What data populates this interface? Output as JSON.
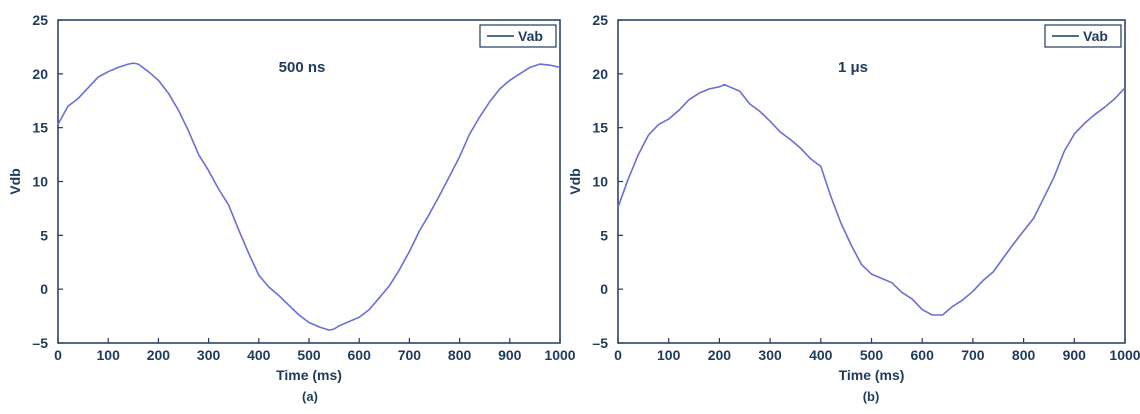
{
  "chart_data": [
    {
      "type": "line",
      "panel_label": "(a)",
      "annotation": "500 ns",
      "xlabel": "Time (ms)",
      "ylabel": "Vdb",
      "xlim": [
        0,
        1000
      ],
      "ylim": [
        -5,
        25
      ],
      "xticks": [
        "0",
        "100",
        "200",
        "300",
        "400",
        "500",
        "600",
        "700",
        "800",
        "900",
        "1000"
      ],
      "yticks": [
        "–5",
        "0",
        "5",
        "10",
        "15",
        "20",
        "25"
      ],
      "legend": {
        "entries": [
          "Vab"
        ],
        "placement": "top-right"
      },
      "grid": false,
      "series": [
        {
          "name": "Vab",
          "color": "#6a6fd6",
          "x": [
            0,
            20,
            40,
            60,
            80,
            100,
            120,
            140,
            150,
            160,
            180,
            200,
            220,
            240,
            260,
            280,
            300,
            320,
            340,
            360,
            380,
            400,
            420,
            440,
            460,
            480,
            500,
            520,
            540,
            550,
            560,
            580,
            600,
            620,
            640,
            660,
            680,
            700,
            720,
            740,
            760,
            780,
            800,
            820,
            840,
            860,
            880,
            900,
            920,
            940,
            960,
            980,
            1000
          ],
          "y": [
            15.3,
            17.0,
            17.7,
            18.7,
            19.7,
            20.2,
            20.6,
            20.9,
            21.0,
            20.9,
            20.2,
            19.4,
            18.2,
            16.6,
            14.7,
            12.5,
            11.0,
            9.3,
            7.8,
            5.5,
            3.3,
            1.3,
            0.2,
            -0.6,
            -1.5,
            -2.4,
            -3.1,
            -3.5,
            -3.8,
            -3.7,
            -3.4,
            -3.0,
            -2.6,
            -1.9,
            -0.8,
            0.3,
            1.8,
            3.5,
            5.4,
            7.0,
            8.7,
            10.5,
            12.3,
            14.4,
            16.0,
            17.4,
            18.6,
            19.4,
            20.0,
            20.6,
            20.9,
            20.8,
            20.6
          ]
        }
      ]
    },
    {
      "type": "line",
      "panel_label": "(b)",
      "annotation": "1 μs",
      "xlabel": "Time (ms)",
      "ylabel": "Vdb",
      "xlim": [
        0,
        1000
      ],
      "ylim": [
        -5,
        25
      ],
      "xticks": [
        "0",
        "100",
        "200",
        "300",
        "400",
        "500",
        "600",
        "700",
        "800",
        "900",
        "1000"
      ],
      "yticks": [
        "–5",
        "0",
        "5",
        "10",
        "15",
        "20",
        "25"
      ],
      "legend": {
        "entries": [
          "Vab"
        ],
        "placement": "top-right"
      },
      "grid": false,
      "series": [
        {
          "name": "Vab",
          "color": "#6a6fd6",
          "x": [
            0,
            20,
            40,
            60,
            80,
            100,
            120,
            140,
            160,
            180,
            200,
            210,
            220,
            240,
            260,
            280,
            300,
            320,
            340,
            360,
            380,
            400,
            420,
            440,
            460,
            480,
            500,
            520,
            540,
            560,
            580,
            600,
            620,
            640,
            660,
            680,
            700,
            720,
            740,
            760,
            780,
            800,
            820,
            840,
            860,
            880,
            900,
            920,
            940,
            960,
            980,
            1000
          ],
          "y": [
            7.6,
            10.2,
            12.5,
            14.3,
            15.3,
            15.8,
            16.6,
            17.6,
            18.2,
            18.6,
            18.8,
            19.0,
            18.8,
            18.4,
            17.2,
            16.5,
            15.6,
            14.6,
            13.9,
            13.1,
            12.1,
            11.4,
            8.6,
            6.1,
            4.1,
            2.3,
            1.4,
            1.0,
            0.6,
            -0.3,
            -0.9,
            -1.9,
            -2.4,
            -2.4,
            -1.6,
            -1.0,
            -0.2,
            0.8,
            1.6,
            2.9,
            4.2,
            5.4,
            6.6,
            8.5,
            10.4,
            12.8,
            14.4,
            15.4,
            16.2,
            16.9,
            17.7,
            18.7
          ]
        }
      ]
    }
  ]
}
